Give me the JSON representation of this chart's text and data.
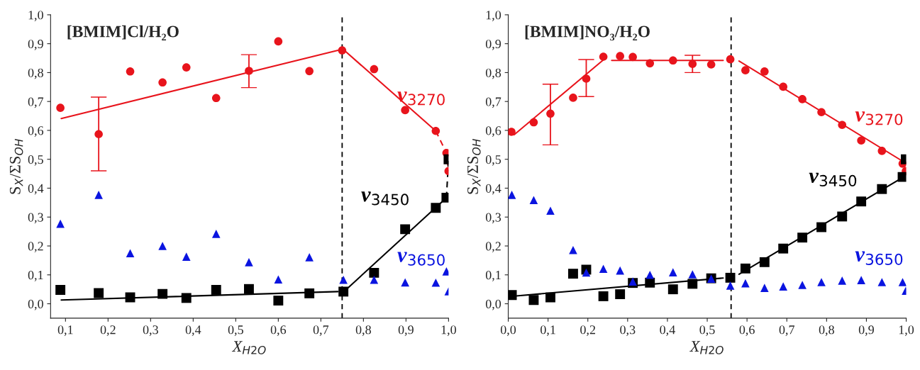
{
  "chart_data": [
    {
      "type": "scatter",
      "title": "[BMIM]Cl/H₂O",
      "xlabel": "X$_{H2O}$",
      "ylabel": "S$_{X}$/ΣS$_{OH}$",
      "xlim": [
        0.065,
        1.0
      ],
      "ylim": [
        -0.05,
        1.0
      ],
      "xticks": [
        {
          "value": 0.1,
          "label": "0,1"
        },
        {
          "value": 0.2,
          "label": "0,2"
        },
        {
          "value": 0.3,
          "label": "0,3"
        },
        {
          "value": 0.4,
          "label": "0,4"
        },
        {
          "value": 0.5,
          "label": "0,5"
        },
        {
          "value": 0.6,
          "label": "0,6"
        },
        {
          "value": 0.7,
          "label": "0,7"
        },
        {
          "value": 0.8,
          "label": "0,8"
        },
        {
          "value": 0.9,
          "label": "0,9"
        },
        {
          "value": 1.0,
          "label": "1,0"
        }
      ],
      "yticks": [
        {
          "value": 0.0,
          "label": "0,0"
        },
        {
          "value": 0.1,
          "label": "0,1"
        },
        {
          "value": 0.2,
          "label": "0,2"
        },
        {
          "value": 0.3,
          "label": "0,3"
        },
        {
          "value": 0.4,
          "label": "0,4"
        },
        {
          "value": 0.5,
          "label": "0,5"
        },
        {
          "value": 0.6,
          "label": "0,6"
        },
        {
          "value": 0.7,
          "label": "0,7"
        },
        {
          "value": 0.8,
          "label": "0,8"
        },
        {
          "value": 0.9,
          "label": "0,9"
        },
        {
          "value": 1.0,
          "label": "1,0"
        }
      ],
      "grid": false,
      "legend": false,
      "ref_lines": [
        {
          "axis": "x",
          "value": 0.75,
          "color": "#000000",
          "line_style": "dashed"
        }
      ],
      "series": [
        {
          "name": "ν$_{3270}$",
          "color": "#e8141c",
          "marker": "circle",
          "x": [
            0.088,
            0.178,
            0.252,
            0.328,
            0.384,
            0.454,
            0.531,
            0.6,
            0.673,
            0.75,
            0.825,
            0.898,
            0.97,
            0.995,
            1.0
          ],
          "values": [
            0.678,
            0.587,
            0.804,
            0.766,
            0.818,
            0.712,
            0.806,
            0.908,
            0.805,
            0.877,
            0.812,
            0.67,
            0.598,
            0.522,
            0.459
          ],
          "errors": [
            null,
            [
              0.46,
              0.715
            ],
            null,
            null,
            null,
            null,
            [
              0.748,
              0.862
            ],
            null,
            null,
            null,
            null,
            null,
            null,
            null,
            null
          ]
        },
        {
          "name": "ν$_{3450}$",
          "color": "#000000",
          "marker": "square",
          "x": [
            0.088,
            0.178,
            0.252,
            0.328,
            0.384,
            0.454,
            0.531,
            0.6,
            0.673,
            0.753,
            0.825,
            0.898,
            0.97,
            0.995,
            1.0
          ],
          "values": [
            0.048,
            0.037,
            0.022,
            0.034,
            0.02,
            0.048,
            0.051,
            0.011,
            0.036,
            0.042,
            0.107,
            0.258,
            0.332,
            0.367,
            0.5
          ]
        },
        {
          "name": "ν$_{3650}$",
          "color": "#0a14e0",
          "marker": "triangle",
          "x": [
            0.088,
            0.178,
            0.252,
            0.328,
            0.384,
            0.454,
            0.531,
            0.6,
            0.673,
            0.753,
            0.825,
            0.898,
            0.97,
            0.995,
            1.0
          ],
          "values": [
            0.277,
            0.377,
            0.175,
            0.2,
            0.163,
            0.242,
            0.144,
            0.084,
            0.161,
            0.083,
            0.083,
            0.074,
            0.073,
            0.112,
            0.043
          ]
        },
        {
          "type": "line",
          "color": "#e8141c",
          "line_style": "solid",
          "x": [
            0.09,
            0.74
          ],
          "values": [
            0.641,
            0.877
          ]
        },
        {
          "type": "line",
          "color": "#e8141c",
          "line_style": "solid",
          "x": [
            0.755,
            0.97
          ],
          "values": [
            0.877,
            0.598
          ]
        },
        {
          "type": "line",
          "color": "#e8141c",
          "line_style": "dashed",
          "x": [
            0.97,
            0.995,
            1.0
          ],
          "values": [
            0.598,
            0.522,
            0.459
          ]
        },
        {
          "type": "line",
          "color": "#000000",
          "line_style": "solid",
          "x": [
            0.09,
            0.74
          ],
          "values": [
            0.013,
            0.042
          ]
        },
        {
          "type": "line",
          "color": "#000000",
          "line_style": "solid",
          "x": [
            0.76,
            0.995
          ],
          "values": [
            0.05,
            0.367
          ]
        },
        {
          "type": "line",
          "color": "#000000",
          "line_style": "dashed",
          "x": [
            0.995,
            1.0
          ],
          "values": [
            0.367,
            0.5
          ]
        }
      ]
    },
    {
      "type": "scatter",
      "title": "[BMIM]NO₃/H₂O",
      "xlabel": "X$_{H2O}$",
      "ylabel": "S$_{X}$/ΣS$_{OH}$",
      "xlim": [
        0.0,
        1.0
      ],
      "ylim": [
        -0.05,
        1.0
      ],
      "xticks": [
        {
          "value": 0.0,
          "label": "0,0"
        },
        {
          "value": 0.1,
          "label": "0,1"
        },
        {
          "value": 0.2,
          "label": "0,2"
        },
        {
          "value": 0.3,
          "label": "0,3"
        },
        {
          "value": 0.4,
          "label": "0,4"
        },
        {
          "value": 0.5,
          "label": "0,5"
        },
        {
          "value": 0.6,
          "label": "0,6"
        },
        {
          "value": 0.7,
          "label": "0,7"
        },
        {
          "value": 0.8,
          "label": "0,8"
        },
        {
          "value": 0.9,
          "label": "0,9"
        },
        {
          "value": 1.0,
          "label": "1,0"
        }
      ],
      "yticks": [
        {
          "value": 0.0,
          "label": "0,0"
        },
        {
          "value": 0.1,
          "label": "0,1"
        },
        {
          "value": 0.2,
          "label": "0,2"
        },
        {
          "value": 0.3,
          "label": "0,3"
        },
        {
          "value": 0.4,
          "label": "0,4"
        },
        {
          "value": 0.5,
          "label": "0,5"
        },
        {
          "value": 0.6,
          "label": "0,6"
        },
        {
          "value": 0.7,
          "label": "0,7"
        },
        {
          "value": 0.8,
          "label": "0,8"
        },
        {
          "value": 0.9,
          "label": "0,9"
        },
        {
          "value": 1.0,
          "label": "1,0"
        }
      ],
      "grid": false,
      "legend": false,
      "ref_lines": [
        {
          "axis": "x",
          "value": 0.56,
          "color": "#000000",
          "line_style": "dashed"
        }
      ],
      "series": [
        {
          "name": "ν$_{3270}$",
          "color": "#e8141c",
          "marker": "circle",
          "x": [
            0.008,
            0.064,
            0.106,
            0.163,
            0.196,
            0.239,
            0.281,
            0.313,
            0.356,
            0.414,
            0.463,
            0.51,
            0.558,
            0.596,
            0.644,
            0.691,
            0.739,
            0.787,
            0.839,
            0.887,
            0.939,
            0.991,
            0.999
          ],
          "values": [
            0.595,
            0.628,
            0.658,
            0.713,
            0.779,
            0.855,
            0.857,
            0.854,
            0.832,
            0.842,
            0.83,
            0.828,
            0.846,
            0.808,
            0.804,
            0.751,
            0.708,
            0.663,
            0.619,
            0.565,
            0.529,
            0.485,
            0.459
          ],
          "errors": [
            null,
            null,
            [
              0.55,
              0.76
            ],
            null,
            [
              0.717,
              0.845
            ],
            null,
            null,
            null,
            null,
            null,
            [
              0.8,
              0.86
            ],
            null,
            null,
            null,
            null,
            null,
            null,
            null,
            null,
            null,
            null,
            null,
            null
          ]
        },
        {
          "name": "ν$_{3450}$",
          "color": "#000000",
          "marker": "square",
          "x": [
            0.009,
            0.064,
            0.106,
            0.163,
            0.196,
            0.239,
            0.281,
            0.313,
            0.356,
            0.414,
            0.463,
            0.51,
            0.558,
            0.596,
            0.644,
            0.691,
            0.739,
            0.787,
            0.839,
            0.887,
            0.939,
            0.991,
            0.999
          ],
          "values": [
            0.03,
            0.013,
            0.022,
            0.104,
            0.118,
            0.026,
            0.033,
            0.072,
            0.073,
            0.05,
            0.069,
            0.088,
            0.09,
            0.122,
            0.144,
            0.191,
            0.229,
            0.265,
            0.302,
            0.354,
            0.397,
            0.439,
            0.5
          ]
        },
        {
          "name": "ν$_{3650}$",
          "color": "#0a14e0",
          "marker": "triangle",
          "x": [
            0.009,
            0.064,
            0.106,
            0.163,
            0.196,
            0.239,
            0.281,
            0.313,
            0.356,
            0.414,
            0.463,
            0.51,
            0.558,
            0.596,
            0.644,
            0.691,
            0.739,
            0.787,
            0.839,
            0.887,
            0.939,
            0.991,
            0.999
          ],
          "values": [
            0.377,
            0.359,
            0.322,
            0.186,
            0.108,
            0.121,
            0.115,
            0.077,
            0.1,
            0.109,
            0.102,
            0.087,
            0.063,
            0.071,
            0.055,
            0.06,
            0.065,
            0.075,
            0.08,
            0.082,
            0.075,
            0.075,
            0.045
          ]
        },
        {
          "type": "line",
          "color": "#e8141c",
          "line_style": "solid",
          "x": [
            0.015,
            0.24
          ],
          "values": [
            0.585,
            0.845
          ]
        },
        {
          "type": "line",
          "color": "#e8141c",
          "line_style": "solid",
          "x": [
            0.26,
            0.54
          ],
          "values": [
            0.842,
            0.842
          ]
        },
        {
          "type": "line",
          "color": "#e8141c",
          "line_style": "solid",
          "x": [
            0.58,
            0.995
          ],
          "values": [
            0.84,
            0.49
          ]
        },
        {
          "type": "line",
          "color": "#000000",
          "line_style": "solid",
          "x": [
            0.02,
            0.54
          ],
          "values": [
            0.027,
            0.089
          ]
        },
        {
          "type": "line",
          "color": "#000000",
          "line_style": "solid",
          "x": [
            0.58,
            0.995
          ],
          "values": [
            0.102,
            0.44
          ]
        }
      ]
    }
  ]
}
